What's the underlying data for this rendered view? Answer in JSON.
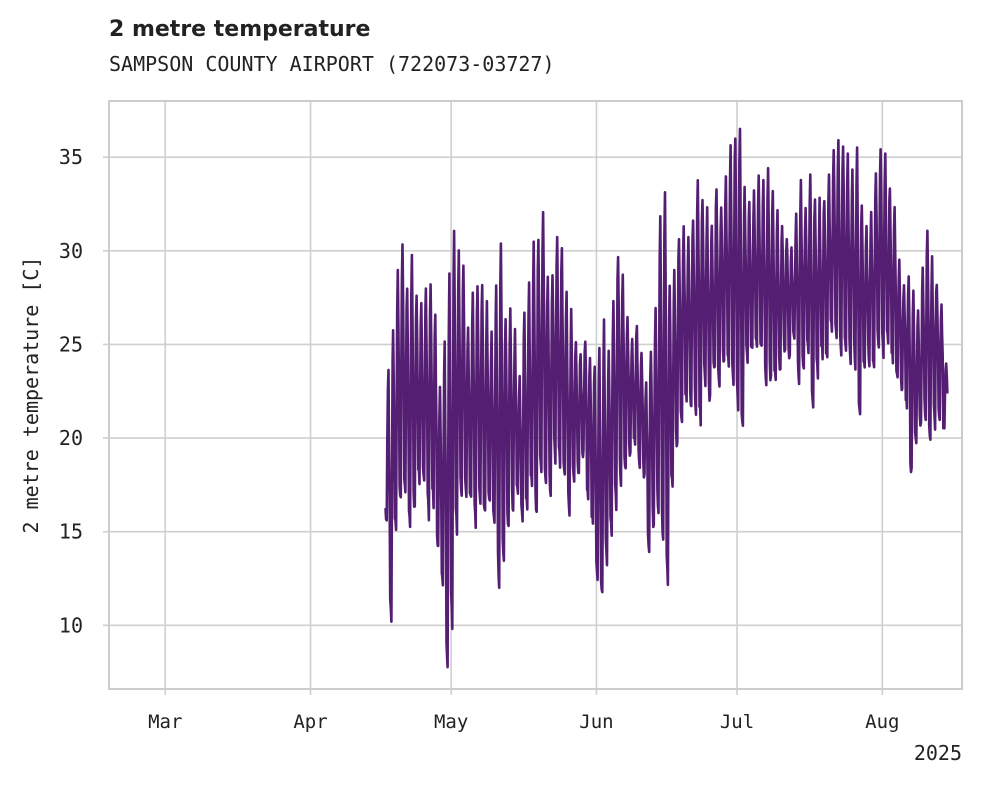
{
  "title": "2 metre temperature",
  "subtitle": "SAMPSON COUNTY AIRPORT (722073-03727)",
  "colors": {
    "line": "#541f73",
    "grid": "#cfcfcf",
    "axis": "#cccccc",
    "text": "#222222"
  },
  "chart_data": {
    "type": "line",
    "ylabel": "2 metre temperature [C]",
    "xlabel": "",
    "xlim": [
      "2025-02-17",
      "2025-08-18"
    ],
    "ylim": [
      6.6,
      38.0
    ],
    "x_ticks": [
      {
        "date": "2025-03-01",
        "label": "Mar"
      },
      {
        "date": "2025-04-01",
        "label": "Apr"
      },
      {
        "date": "2025-05-01",
        "label": "May"
      },
      {
        "date": "2025-06-01",
        "label": "Jun"
      },
      {
        "date": "2025-07-01",
        "label": "Jul"
      },
      {
        "date": "2025-08-01",
        "label": "Aug"
      }
    ],
    "x_offset_label": "2025",
    "y_ticks": [
      10,
      15,
      20,
      25,
      30,
      35
    ],
    "grid": true,
    "series": [
      {
        "data_start": "2025-04-17",
        "data_end": "2025-08-15",
        "sampling": "3-hourly",
        "daily_min": [
          15.5,
          10.0,
          14.8,
          16.5,
          17.2,
          15.0,
          16.2,
          17.6,
          17.8,
          16.0,
          16.5,
          14.0,
          12.0,
          7.8,
          10.2,
          15.0,
          16.8,
          17.0,
          16.5,
          15.5,
          16.8,
          15.8,
          16.6,
          15.3,
          12.3,
          13.5,
          15.0,
          16.2,
          16.8,
          15.5,
          16.0,
          17.2,
          15.8,
          18.2,
          17.8,
          16.8,
          19.0,
          18.5,
          17.9,
          16.0,
          17.5,
          18.0,
          19.0,
          16.5,
          15.5,
          12.3,
          11.5,
          13.6,
          15.0,
          16.5,
          17.8,
          18.5,
          19.2,
          19.8,
          18.5,
          18.0,
          14.2,
          15.0,
          15.8,
          14.5,
          12.2,
          17.5,
          19.5,
          21.0,
          22.0,
          21.6,
          21.5,
          21.0,
          23.0,
          22.0,
          23.5,
          22.8,
          24.0,
          23.5,
          22.5,
          21.6,
          20.5,
          24.0,
          24.5,
          24.8,
          24.6,
          22.6,
          23.0,
          22.8,
          23.5,
          24.6,
          24.1,
          25.0,
          23.2,
          23.8,
          24.5,
          21.8,
          23.5,
          24.6,
          24.0,
          25.5,
          25.2,
          24.8,
          25.0,
          24.3,
          24.0,
          21.0,
          23.8,
          24.0,
          23.5,
          24.5,
          24.5,
          25.0,
          24.3,
          23.5,
          22.5,
          21.8,
          18.0,
          19.5,
          20.5,
          21.0,
          20.0,
          20.8,
          21.0,
          20.5
        ],
        "daily_max": [
          23.5,
          26.0,
          29.0,
          30.4,
          28.0,
          29.5,
          27.8,
          27.5,
          28.0,
          28.2,
          26.5,
          22.5,
          25.0,
          28.5,
          30.8,
          30.0,
          29.5,
          26.0,
          27.5,
          28.5,
          28.0,
          27.0,
          25.5,
          28.0,
          30.5,
          26.5,
          27.0,
          25.5,
          23.0,
          26.5,
          28.0,
          30.2,
          30.8,
          32.2,
          28.5,
          29.0,
          30.5,
          30.0,
          28.0,
          26.5,
          25.0,
          24.5,
          25.5,
          24.5,
          24.0,
          25.0,
          26.0,
          24.5,
          27.5,
          30.0,
          28.5,
          26.5,
          25.0,
          26.0,
          24.5,
          23.0,
          25.0,
          27.0,
          31.5,
          33.5,
          28.5,
          29.0,
          31.0,
          31.0,
          30.5,
          32.0,
          33.5,
          33.0,
          32.0,
          31.5,
          33.5,
          32.5,
          33.8,
          35.5,
          36.3,
          36.4,
          33.5,
          32.5,
          33.0,
          34.0,
          33.5,
          34.5,
          33.0,
          32.5,
          31.5,
          31.0,
          30.0,
          32.0,
          33.5,
          32.5,
          34.0,
          33.0,
          32.5,
          33.0,
          34.0,
          35.5,
          35.6,
          35.8,
          35.0,
          34.5,
          35.2,
          32.5,
          31.0,
          32.0,
          34.5,
          35.7,
          35.0,
          33.5,
          32.0,
          29.5,
          28.5,
          29.0,
          27.5,
          27.0,
          29.0,
          31.0,
          29.5,
          28.5,
          27.5,
          24.0
        ]
      }
    ]
  }
}
